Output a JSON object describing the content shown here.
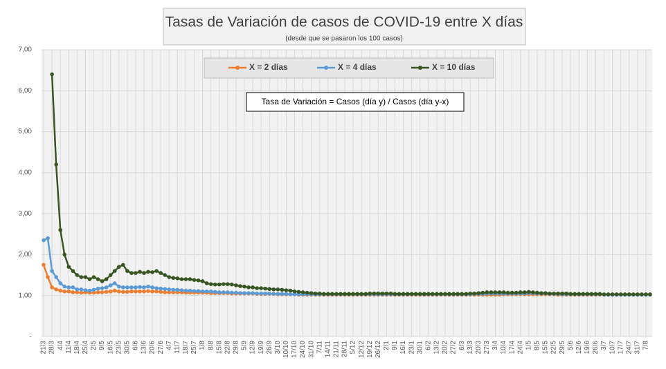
{
  "chart_data": {
    "type": "line",
    "title": "Tasas de Variación de casos de COVID-19 entre X días",
    "subtitle": "(desde que se pasaron los 100 casos)",
    "annotation": "Tasa de Variación = Casos (día y) / Casos (día y-x)",
    "categories": [
      "21/3",
      null,
      "28/3",
      null,
      "4/4",
      null,
      "11/4",
      null,
      "18/4",
      null,
      "25/4",
      null,
      "2/5",
      null,
      "9/5",
      null,
      "16/5",
      null,
      "23/5",
      null,
      "30/5",
      null,
      "6/6",
      null,
      "13/6",
      null,
      "20/6",
      null,
      "27/6",
      null,
      "4/7",
      null,
      "11/7",
      null,
      "18/7",
      null,
      "25/7",
      null,
      "1/8",
      null,
      "8/8",
      null,
      "15/8",
      null,
      "22/8",
      null,
      "29/8",
      null,
      "5/9",
      null,
      "12/9",
      null,
      "19/9",
      null,
      "26/9",
      null,
      "3/10",
      null,
      "10/10",
      null,
      "17/10",
      null,
      "24/10",
      null,
      "31/10",
      null,
      "7/11",
      null,
      "14/11",
      null,
      "21/11",
      null,
      "28/11",
      null,
      "5/12",
      null,
      "12/12",
      null,
      "19/12",
      null,
      "26/12",
      null,
      "2/1",
      null,
      "9/1",
      null,
      "16/1",
      null,
      "23/1",
      null,
      "30/1",
      null,
      "6/2",
      null,
      "13/2",
      null,
      "20/2",
      null,
      "27/2",
      null,
      "6/3",
      null,
      "13/3",
      null,
      "20/3",
      null,
      "27/3",
      null,
      "3/4",
      null,
      "10/4",
      null,
      "17/4",
      null,
      "24/4",
      null,
      "1/5",
      null,
      "8/5",
      null,
      "15/5",
      null,
      "22/5",
      null,
      "29/5",
      null,
      "5/6",
      null,
      "12/6",
      null,
      "19/6",
      null,
      "26/6",
      null,
      "3/7",
      null,
      "10/7",
      null,
      "17/7",
      null,
      "24/7",
      null,
      "31/7",
      null,
      "7/8",
      null
    ],
    "series": [
      {
        "name": "X = 2 días",
        "color": "#ed7d31",
        "values": [
          1.75,
          1.45,
          1.2,
          1.15,
          1.12,
          1.1,
          1.1,
          1.08,
          1.08,
          1.07,
          1.08,
          1.07,
          1.07,
          1.08,
          1.08,
          1.09,
          1.1,
          1.12,
          1.1,
          1.09,
          1.09,
          1.1,
          1.1,
          1.1,
          1.1,
          1.11,
          1.1,
          1.1,
          1.09,
          1.08,
          1.08,
          1.08,
          1.08,
          1.08,
          1.07,
          1.07,
          1.07,
          1.07,
          1.07,
          1.07,
          1.06,
          1.06,
          1.06,
          1.06,
          1.06,
          1.05,
          1.05,
          1.05,
          1.05,
          1.05,
          1.05,
          1.04,
          1.04,
          1.04,
          1.04,
          1.04,
          1.03,
          1.03,
          1.03,
          1.03,
          1.03,
          1.02,
          1.02,
          1.02,
          1.02,
          1.02,
          1.02,
          1.02,
          1.02,
          1.02,
          1.02,
          1.02,
          1.02,
          1.02,
          1.02,
          1.02,
          1.02,
          1.02,
          1.02,
          1.02,
          1.02,
          1.02,
          1.02,
          1.02,
          1.02,
          1.02,
          1.02,
          1.02,
          1.02,
          1.02,
          1.02,
          1.02,
          1.02,
          1.02,
          1.02,
          1.02,
          1.02,
          1.02,
          1.02,
          1.02,
          1.02,
          1.02,
          1.02,
          1.02,
          1.02,
          1.02,
          1.02,
          1.02,
          1.02,
          1.02,
          1.03,
          1.03,
          1.03,
          1.03,
          1.03,
          1.03,
          1.03,
          1.03,
          1.03,
          1.03,
          1.03,
          1.03,
          1.03,
          1.02,
          1.02,
          1.02,
          1.02,
          1.02,
          1.02,
          1.02,
          1.02,
          1.02,
          1.02,
          1.02,
          1.02,
          1.02,
          1.02,
          1.02,
          1.02,
          1.02,
          1.02,
          1.02,
          1.02,
          1.02,
          1.02,
          1.02
        ]
      },
      {
        "name": "X = 4 días",
        "color": "#5b9bd5",
        "values": [
          2.35,
          2.4,
          1.6,
          1.45,
          1.3,
          1.22,
          1.2,
          1.2,
          1.15,
          1.15,
          1.13,
          1.12,
          1.14,
          1.17,
          1.18,
          1.2,
          1.25,
          1.3,
          1.22,
          1.2,
          1.2,
          1.2,
          1.2,
          1.21,
          1.2,
          1.22,
          1.2,
          1.18,
          1.17,
          1.16,
          1.15,
          1.14,
          1.14,
          1.13,
          1.12,
          1.12,
          1.11,
          1.11,
          1.1,
          1.1,
          1.1,
          1.09,
          1.08,
          1.08,
          1.08,
          1.07,
          1.07,
          1.06,
          1.06,
          1.06,
          1.06,
          1.05,
          1.05,
          1.05,
          1.05,
          1.04,
          1.04,
          1.04,
          1.04,
          1.03,
          1.03,
          1.03,
          1.03,
          1.03,
          1.03,
          1.03,
          1.03,
          1.03,
          1.03,
          1.03,
          1.03,
          1.03,
          1.03,
          1.03,
          1.03,
          1.03,
          1.03,
          1.03,
          1.03,
          1.03,
          1.03,
          1.03,
          1.03,
          1.03,
          1.03,
          1.03,
          1.03,
          1.03,
          1.03,
          1.03,
          1.03,
          1.03,
          1.03,
          1.03,
          1.03,
          1.03,
          1.03,
          1.03,
          1.03,
          1.03,
          1.03,
          1.03,
          1.03,
          1.04,
          1.04,
          1.04,
          1.05,
          1.05,
          1.05,
          1.05,
          1.05,
          1.05,
          1.05,
          1.05,
          1.05,
          1.05,
          1.06,
          1.06,
          1.05,
          1.05,
          1.05,
          1.04,
          1.04,
          1.04,
          1.03,
          1.03,
          1.03,
          1.03,
          1.03,
          1.03,
          1.03,
          1.03,
          1.03,
          1.03,
          1.02,
          1.02,
          1.02,
          1.02,
          1.02,
          1.02,
          1.02,
          1.02,
          1.02,
          1.02,
          1.02,
          1.02
        ]
      },
      {
        "name": "X = 10 días",
        "color": "#375623",
        "values": [
          null,
          null,
          6.4,
          4.2,
          2.6,
          2.0,
          1.7,
          1.6,
          1.5,
          1.45,
          1.45,
          1.4,
          1.45,
          1.4,
          1.35,
          1.4,
          1.5,
          1.6,
          1.7,
          1.75,
          1.6,
          1.55,
          1.55,
          1.58,
          1.55,
          1.58,
          1.57,
          1.6,
          1.55,
          1.5,
          1.45,
          1.43,
          1.42,
          1.4,
          1.4,
          1.4,
          1.38,
          1.37,
          1.35,
          1.3,
          1.28,
          1.27,
          1.27,
          1.28,
          1.28,
          1.27,
          1.25,
          1.23,
          1.22,
          1.2,
          1.2,
          1.18,
          1.18,
          1.17,
          1.16,
          1.15,
          1.15,
          1.14,
          1.13,
          1.12,
          1.1,
          1.09,
          1.08,
          1.07,
          1.06,
          1.05,
          1.05,
          1.04,
          1.04,
          1.04,
          1.04,
          1.04,
          1.04,
          1.04,
          1.04,
          1.04,
          1.04,
          1.04,
          1.05,
          1.05,
          1.05,
          1.05,
          1.05,
          1.05,
          1.04,
          1.04,
          1.04,
          1.04,
          1.04,
          1.04,
          1.04,
          1.04,
          1.04,
          1.04,
          1.04,
          1.04,
          1.04,
          1.04,
          1.04,
          1.04,
          1.04,
          1.04,
          1.05,
          1.05,
          1.06,
          1.07,
          1.08,
          1.08,
          1.08,
          1.08,
          1.08,
          1.07,
          1.07,
          1.07,
          1.08,
          1.08,
          1.09,
          1.08,
          1.07,
          1.06,
          1.06,
          1.05,
          1.05,
          1.05,
          1.05,
          1.05,
          1.04,
          1.04,
          1.04,
          1.04,
          1.04,
          1.04,
          1.04,
          1.04,
          1.03,
          1.03,
          1.03,
          1.03,
          1.03,
          1.03,
          1.03,
          1.03,
          1.03,
          1.03,
          1.03,
          1.03
        ]
      }
    ],
    "ylim": [
      0,
      7
    ],
    "yticks": [
      {
        "value": 0,
        "label": "-"
      },
      {
        "value": 1,
        "label": "1,00"
      },
      {
        "value": 2,
        "label": "2,00"
      },
      {
        "value": 3,
        "label": "3,00"
      },
      {
        "value": 4,
        "label": "4,00"
      },
      {
        "value": 5,
        "label": "5,00"
      },
      {
        "value": 6,
        "label": "6,00"
      },
      {
        "value": 7,
        "label": "7,00"
      }
    ],
    "grid": true
  }
}
